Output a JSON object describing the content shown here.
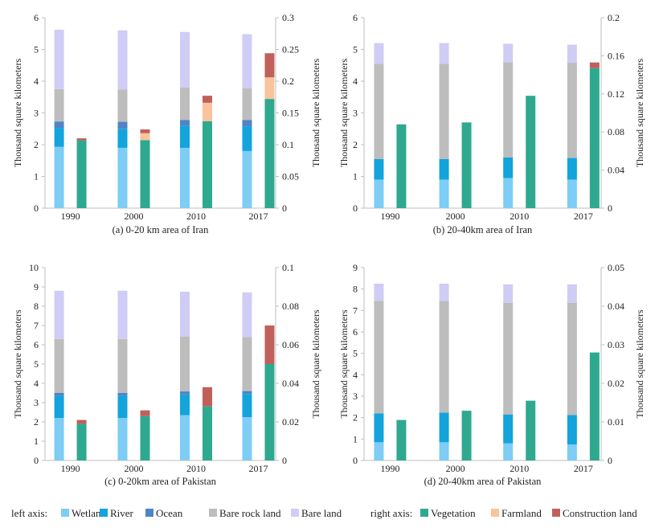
{
  "colors": {
    "wetland": "#7dcdf5",
    "river": "#13a4dc",
    "ocean": "#4f84c6",
    "bare_rock": "#bdbdbd",
    "bare_land": "#cfcdf5",
    "vegetation": "#2ea98f",
    "farmland": "#f7c49b",
    "construction": "#c0605a",
    "axis": "#bfbfbf"
  },
  "legend": {
    "left_axis_label": "left axis:",
    "right_axis_label": "right axis:",
    "items": [
      {
        "key": "wetland",
        "label": "Wetland"
      },
      {
        "key": "river",
        "label": "River"
      },
      {
        "key": "ocean",
        "label": "Ocean"
      },
      {
        "key": "bare_rock",
        "label": "Bare rock land"
      },
      {
        "key": "bare_land",
        "label": "Bare land"
      },
      {
        "key": "vegetation",
        "label": "Vegetation"
      },
      {
        "key": "farmland",
        "label": "Farmland"
      },
      {
        "key": "construction",
        "label": "Construction land"
      }
    ]
  },
  "chart_data": [
    {
      "type": "bar",
      "caption": "(a) 0-20 km area of Iran",
      "categories": [
        "1990",
        "2000",
        "2010",
        "2017"
      ],
      "ylabel_left": "Thousand square kilometers",
      "ylabel_right": "Thousand square kilometers",
      "ylim_left": [
        0,
        6
      ],
      "ylim_right": [
        0,
        0.3
      ],
      "yticks_left": [
        "0",
        "1",
        "2",
        "3",
        "4",
        "5",
        "6"
      ],
      "yticks_right": [
        "0",
        "0.05",
        "0.1",
        "0.15",
        "0.2",
        "0.25",
        "0.3"
      ],
      "left_series": [
        {
          "name": "Wetland",
          "key": "wetland",
          "values": [
            1.93,
            1.9,
            1.9,
            1.8
          ]
        },
        {
          "name": "River",
          "key": "river",
          "values": [
            0.6,
            0.6,
            0.7,
            0.78
          ]
        },
        {
          "name": "Ocean",
          "key": "ocean",
          "values": [
            0.2,
            0.22,
            0.18,
            0.2
          ]
        },
        {
          "name": "Bare rock land",
          "key": "bare_rock",
          "values": [
            1.02,
            1.02,
            1.02,
            1.0
          ]
        },
        {
          "name": "Bare land",
          "key": "bare_land",
          "values": [
            1.87,
            1.86,
            1.75,
            1.7
          ]
        }
      ],
      "right_series": [
        {
          "name": "Vegetation",
          "key": "vegetation",
          "values": [
            0.107,
            0.107,
            0.137,
            0.172
          ]
        },
        {
          "name": "Farmland",
          "key": "farmland",
          "values": [
            0.0,
            0.011,
            0.029,
            0.034
          ]
        },
        {
          "name": "Construction land",
          "key": "construction",
          "values": [
            0.003,
            0.006,
            0.011,
            0.038
          ]
        }
      ]
    },
    {
      "type": "bar",
      "caption": "(b) 20-40km area of Iran",
      "categories": [
        "1990",
        "2000",
        "2010",
        "2017"
      ],
      "ylabel_left": "Thousand square kilometers",
      "ylabel_right": "Thousand square kilometers",
      "ylim_left": [
        0,
        6
      ],
      "ylim_right": [
        0,
        0.2
      ],
      "yticks_left": [
        "0",
        "1",
        "2",
        "3",
        "4",
        "5",
        "6"
      ],
      "yticks_right": [
        "0",
        "0.04",
        "0.08",
        "0.12",
        "0.16",
        "0.2"
      ],
      "left_series": [
        {
          "name": "Wetland",
          "key": "wetland",
          "values": [
            0.9,
            0.9,
            0.95,
            0.9
          ]
        },
        {
          "name": "River",
          "key": "river",
          "values": [
            0.65,
            0.65,
            0.65,
            0.68
          ]
        },
        {
          "name": "Ocean",
          "key": "ocean",
          "values": [
            0.0,
            0.0,
            0.0,
            0.0
          ]
        },
        {
          "name": "Bare rock land",
          "key": "bare_rock",
          "values": [
            3.0,
            3.0,
            3.0,
            3.0
          ]
        },
        {
          "name": "Bare land",
          "key": "bare_land",
          "values": [
            0.65,
            0.65,
            0.58,
            0.57
          ]
        }
      ],
      "right_series": [
        {
          "name": "Vegetation",
          "key": "vegetation",
          "values": [
            0.088,
            0.09,
            0.118,
            0.147
          ]
        },
        {
          "name": "Farmland",
          "key": "farmland",
          "values": [
            0.0,
            0.0,
            0.0,
            0.0
          ]
        },
        {
          "name": "Construction land",
          "key": "construction",
          "values": [
            0.0,
            0.0,
            0.0,
            0.006
          ]
        }
      ]
    },
    {
      "type": "bar",
      "caption": "(c) 0-20km area of Pakistan",
      "categories": [
        "1990",
        "2000",
        "2010",
        "2017"
      ],
      "ylabel_left": "Thousand square kilometers",
      "ylabel_right": "Thousand square kilometers",
      "ylim_left": [
        0,
        10
      ],
      "ylim_right": [
        0,
        0.1
      ],
      "yticks_left": [
        "0",
        "1",
        "2",
        "3",
        "4",
        "5",
        "6",
        "7",
        "8",
        "9",
        "10"
      ],
      "yticks_right": [
        "0",
        "0.02",
        "0.04",
        "0.06",
        "0.08",
        "0.1"
      ],
      "left_series": [
        {
          "name": "Wetland",
          "key": "wetland",
          "values": [
            2.2,
            2.2,
            2.35,
            2.25
          ]
        },
        {
          "name": "River",
          "key": "river",
          "values": [
            1.15,
            1.15,
            1.08,
            1.2
          ]
        },
        {
          "name": "Ocean",
          "key": "ocean",
          "values": [
            0.15,
            0.15,
            0.15,
            0.15
          ]
        },
        {
          "name": "Bare rock land",
          "key": "bare_rock",
          "values": [
            2.8,
            2.8,
            2.85,
            2.8
          ]
        },
        {
          "name": "Bare land",
          "key": "bare_land",
          "values": [
            2.5,
            2.5,
            2.32,
            2.32
          ]
        }
      ],
      "right_series": [
        {
          "name": "Vegetation",
          "key": "vegetation",
          "values": [
            0.019,
            0.023,
            0.028,
            0.05
          ]
        },
        {
          "name": "Farmland",
          "key": "farmland",
          "values": [
            0.0,
            0.0,
            0.0,
            0.0
          ]
        },
        {
          "name": "Construction land",
          "key": "construction",
          "values": [
            0.002,
            0.003,
            0.01,
            0.02
          ]
        }
      ]
    },
    {
      "type": "bar",
      "caption": "(d) 20-40km area of Pakistan",
      "categories": [
        "1990",
        "2000",
        "2010",
        "2017"
      ],
      "ylabel_left": "Thousand square kilometers",
      "ylabel_right": "Thousand square kilometers",
      "ylim_left": [
        0,
        9
      ],
      "ylim_right": [
        0,
        0.05
      ],
      "yticks_left": [
        "0",
        "1",
        "2",
        "3",
        "4",
        "5",
        "6",
        "7",
        "8",
        "9"
      ],
      "yticks_right": [
        "0",
        "0.01",
        "0.02",
        "0.03",
        "0.04",
        "0.05"
      ],
      "left_series": [
        {
          "name": "Wetland",
          "key": "wetland",
          "values": [
            0.85,
            0.85,
            0.8,
            0.75
          ]
        },
        {
          "name": "River",
          "key": "river",
          "values": [
            1.35,
            1.38,
            1.35,
            1.37
          ]
        },
        {
          "name": "Ocean",
          "key": "ocean",
          "values": [
            0.0,
            0.0,
            0.0,
            0.0
          ]
        },
        {
          "name": "Bare rock land",
          "key": "bare_rock",
          "values": [
            5.25,
            5.22,
            5.2,
            5.23
          ]
        },
        {
          "name": "Bare land",
          "key": "bare_land",
          "values": [
            0.8,
            0.8,
            0.87,
            0.87
          ]
        }
      ],
      "right_series": [
        {
          "name": "Vegetation",
          "key": "vegetation",
          "values": [
            0.0105,
            0.0129,
            0.0155,
            0.028
          ]
        },
        {
          "name": "Farmland",
          "key": "farmland",
          "values": [
            0.0,
            0.0,
            0.0,
            0.0
          ]
        },
        {
          "name": "Construction land",
          "key": "construction",
          "values": [
            0.0,
            0.0,
            0.0,
            0.0
          ]
        }
      ]
    }
  ]
}
